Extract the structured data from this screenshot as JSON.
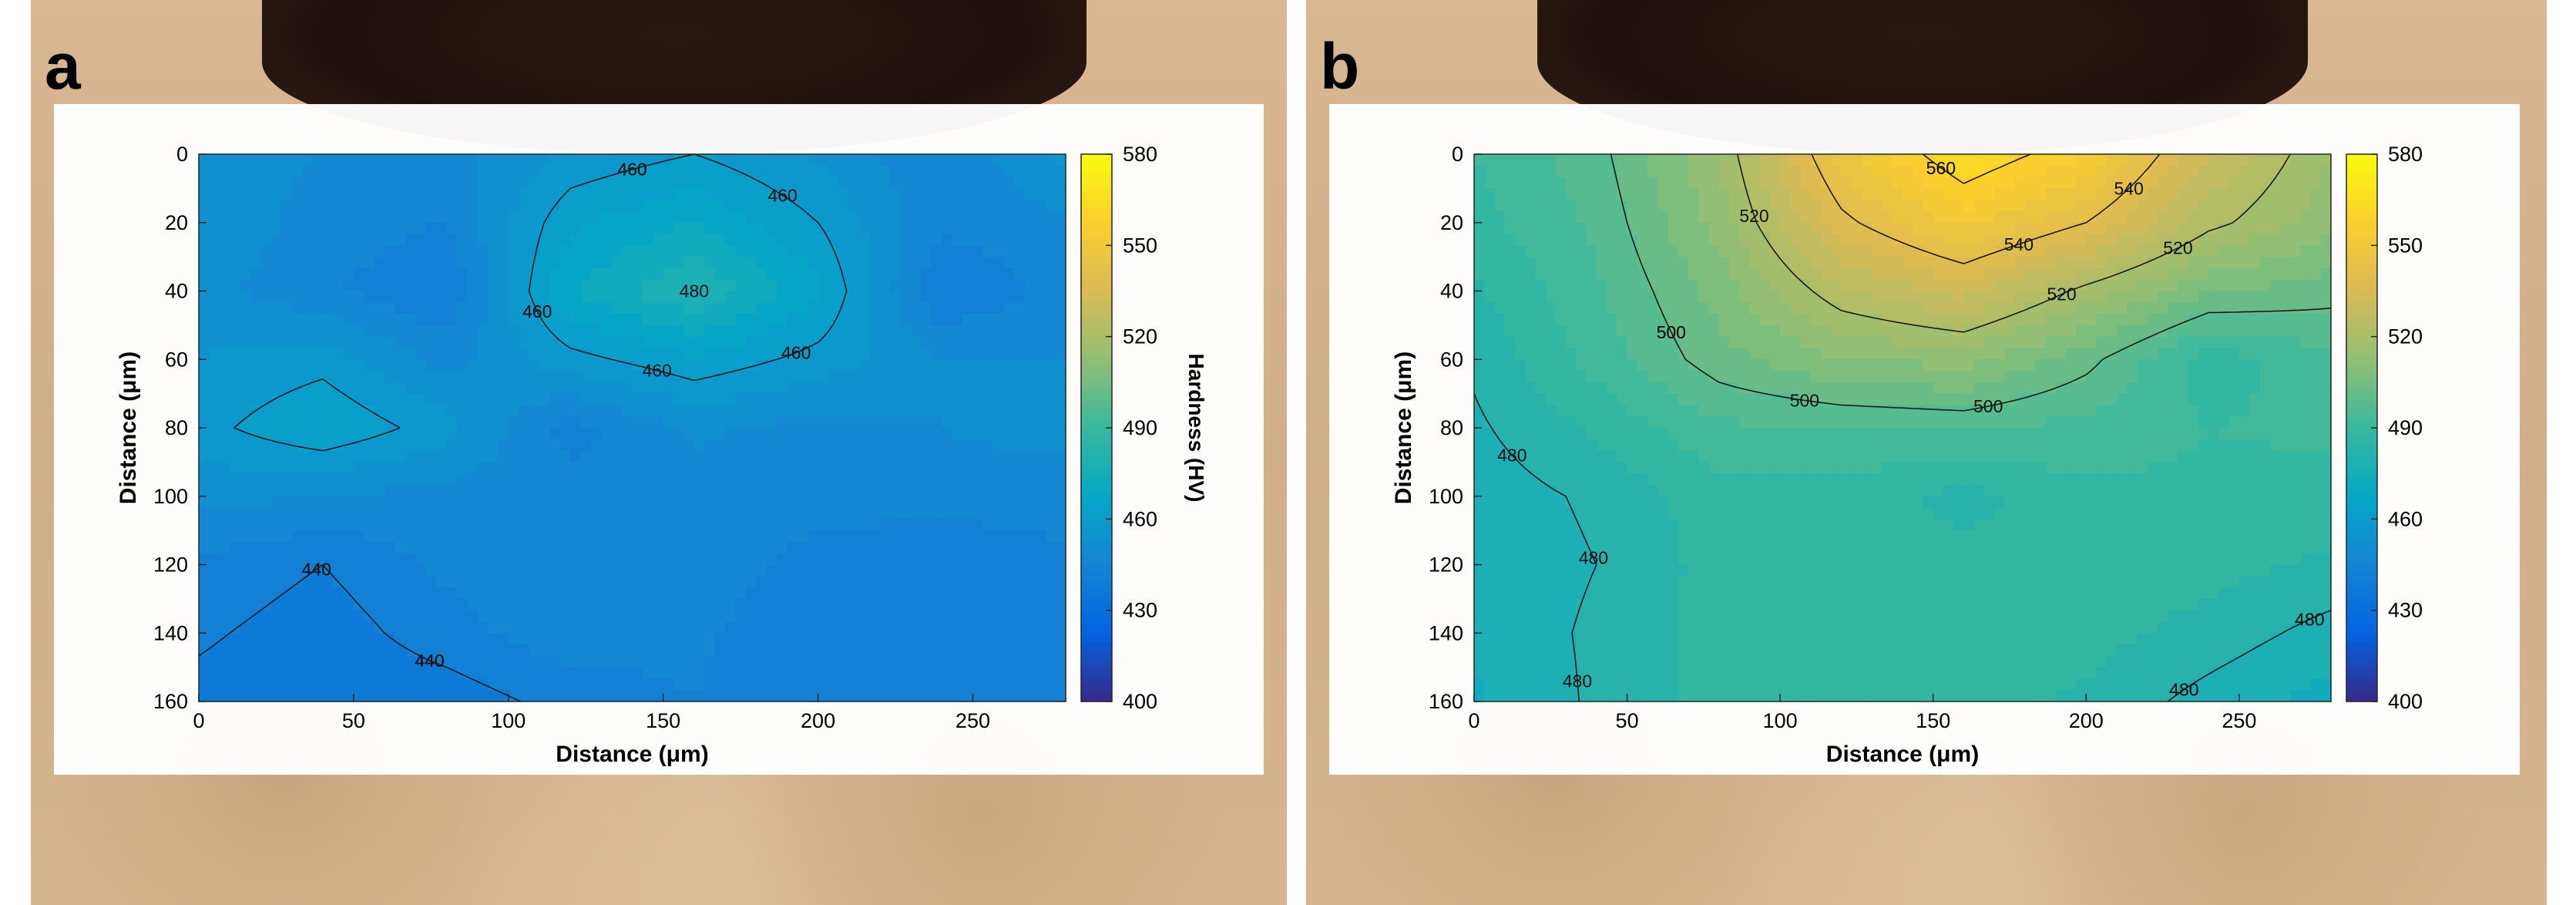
{
  "colormap": {
    "name": "parula",
    "stops": [
      "#352a87",
      "#0363e1",
      "#1485d4",
      "#06a7c6",
      "#38b99e",
      "#92bf73",
      "#d9ba56",
      "#fcce2e",
      "#f9fb0e"
    ]
  },
  "chart_data": [
    {
      "type": "heatmap",
      "panel_label": "a",
      "xlabel": "Distance (μm)",
      "ylabel": "Distance (μm)",
      "xlim": [
        0,
        280
      ],
      "ylim": [
        160,
        0
      ],
      "xticks": [
        0,
        50,
        100,
        150,
        200,
        250
      ],
      "yticks": [
        0,
        20,
        40,
        60,
        80,
        100,
        120,
        140,
        160
      ],
      "x": [
        0,
        40,
        80,
        120,
        160,
        200,
        240,
        280
      ],
      "y": [
        0,
        20,
        40,
        60,
        80,
        100,
        120,
        140,
        160
      ],
      "z": [
        [
          452,
          450,
          448,
          456,
          460,
          454,
          446,
          456
        ],
        [
          454,
          448,
          445,
          464,
          470,
          460,
          446,
          449
        ],
        [
          452,
          446,
          440,
          470,
          480,
          466,
          440,
          447
        ],
        [
          455,
          458,
          448,
          458,
          464,
          458,
          450,
          450
        ],
        [
          458,
          465,
          457,
          443,
          451,
          448,
          450,
          452
        ],
        [
          452,
          450,
          448,
          447,
          448,
          447,
          448,
          447
        ],
        [
          444,
          440,
          446,
          450,
          448,
          443,
          440,
          444
        ],
        [
          441,
          437,
          443,
          448,
          446,
          441,
          440,
          442
        ],
        [
          438,
          435,
          437,
          442,
          445,
          440,
          440,
          442
        ]
      ],
      "contour_levels": [
        440,
        460,
        480
      ],
      "contour_labels": [
        "460",
        "460",
        "460",
        "460",
        "480",
        "440",
        "460",
        "440",
        "460",
        "460",
        "460",
        "440",
        "460",
        "440",
        "440",
        "440",
        "440"
      ],
      "colorbar": {
        "label": "Hardness (HV)",
        "ticks": [
          400,
          430,
          460,
          490,
          520,
          550,
          580
        ],
        "range": [
          400,
          580
        ]
      }
    },
    {
      "type": "heatmap",
      "panel_label": "b",
      "xlabel": "Distance (μm)",
      "ylabel": "Distance (μm)",
      "xlim": [
        0,
        280
      ],
      "ylim": [
        160,
        0
      ],
      "xticks": [
        0,
        50,
        100,
        150,
        200,
        250
      ],
      "yticks": [
        0,
        20,
        40,
        60,
        80,
        100,
        120,
        140,
        160
      ],
      "x": [
        0,
        40,
        80,
        120,
        160,
        200,
        240,
        280
      ],
      "y": [
        0,
        20,
        40,
        60,
        80,
        100,
        120,
        140,
        160
      ],
      "z": [
        [
          490,
          498,
          515,
          548,
          566,
          555,
          530,
          515
        ],
        [
          488,
          496,
          512,
          538,
          552,
          540,
          522,
          512
        ],
        [
          484,
          494,
          507,
          524,
          532,
          518,
          506,
          502
        ],
        [
          481,
          492,
          503,
          510,
          512,
          502,
          487,
          494
        ],
        [
          479,
          486,
          494,
          495,
          496,
          493,
          490,
          491
        ],
        [
          477,
          481,
          488,
          488,
          483,
          489,
          489,
          488
        ],
        [
          476,
          480,
          487,
          488,
          487,
          488,
          487,
          484
        ],
        [
          476,
          481,
          487,
          488,
          487,
          487,
          483,
          478
        ],
        [
          474,
          481,
          487,
          488,
          487,
          484,
          478,
          473
        ]
      ],
      "contour_levels": [
        480,
        500,
        520,
        540,
        560
      ],
      "contour_labels": [
        "560",
        "560",
        "500",
        "520",
        "540",
        "540",
        "520",
        "520",
        "500",
        "480",
        "500",
        "500",
        "480",
        "480",
        "480",
        "480",
        "480",
        "480"
      ],
      "colorbar": {
        "label": "",
        "ticks": [
          400,
          430,
          460,
          490,
          520,
          550,
          580
        ],
        "range": [
          400,
          580
        ]
      }
    }
  ]
}
